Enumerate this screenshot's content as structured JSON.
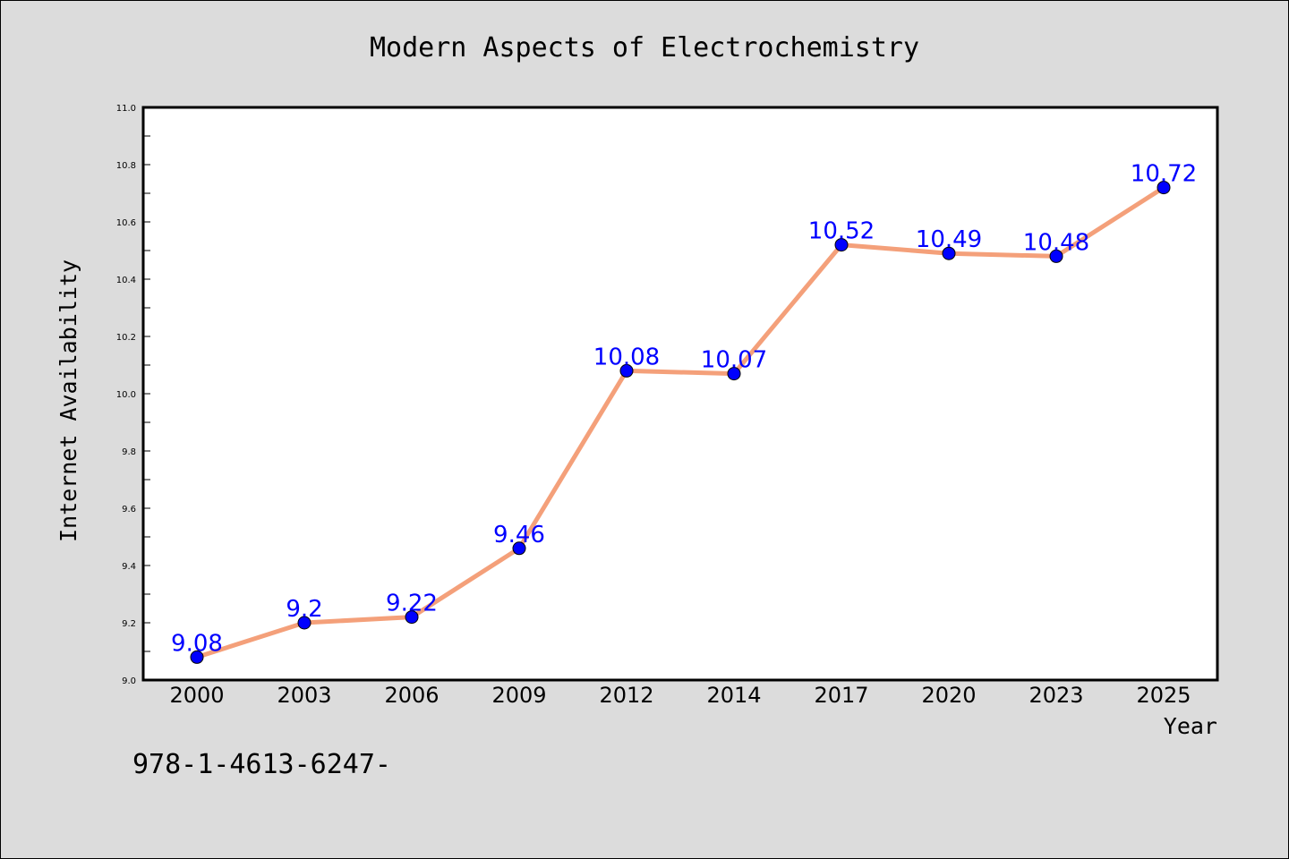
{
  "chart_data": {
    "type": "line",
    "title": "Modern Aspects of Electrochemistry",
    "xlabel": "Year",
    "ylabel": "Internet Availability",
    "categories": [
      "2000",
      "2003",
      "2006",
      "2009",
      "2012",
      "2014",
      "2017",
      "2020",
      "2023",
      "2025"
    ],
    "series": [
      {
        "values": [
          9.08,
          9.2,
          9.22,
          9.46,
          10.08,
          10.07,
          10.52,
          10.49,
          10.48,
          10.72
        ],
        "data_labels": [
          "9.08",
          "9.2",
          "9.22",
          "9.46",
          "10.08",
          "10.07",
          "10.52",
          "10.49",
          "10.48",
          "10.72"
        ],
        "line_color": "#f4a07a",
        "marker_color": "#0000ff"
      }
    ],
    "ylim": [
      9.0,
      11.0
    ],
    "yticks": [
      "9.0",
      "9.2",
      "9.4",
      "9.6",
      "9.8",
      "10.0",
      "10.2",
      "10.4",
      "10.6",
      "10.8",
      "11.0"
    ],
    "grid": false,
    "legend": "none"
  },
  "footnote": "978-1-4613-6247-",
  "colors": {
    "background": "#dcdcdc",
    "plot_background": "#ffffff",
    "line": "#f4a07a",
    "marker": "#0000ff",
    "data_label": "#0000ff"
  }
}
